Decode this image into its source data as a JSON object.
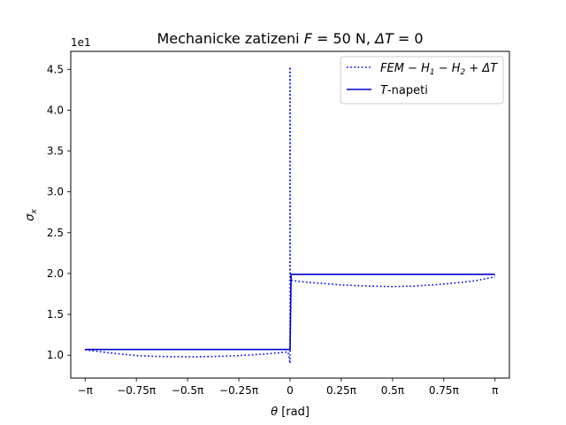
{
  "chart_data": {
    "type": "line",
    "title": "Mechanicke zatizeni F = 50 N, ΔT = 0",
    "title_parts": {
      "prefix": "Mechanicke zatizeni ",
      "var_f": "F",
      "mid": " = 50 N, ",
      "var_dt": "ΔT",
      "suffix": " = 0"
    },
    "xlabel": "θ [rad]",
    "xlabel_parts": {
      "var": "θ",
      "unit": " [rad]"
    },
    "ylabel": "σx",
    "ylabel_parts": {
      "sym": "σ",
      "sub": "x"
    },
    "y_offset_text": "1e1",
    "x_unit": "pi",
    "xlim": [
      -1.07,
      1.07
    ],
    "ylim": [
      0.72,
      4.72
    ],
    "x_ticks": [
      {
        "value": -1.0,
        "label": "−π"
      },
      {
        "value": -0.75,
        "label": "−0.75π"
      },
      {
        "value": -0.5,
        "label": "−0.5π"
      },
      {
        "value": -0.25,
        "label": "−0.25π"
      },
      {
        "value": 0.0,
        "label": "0"
      },
      {
        "value": 0.25,
        "label": "0.25π"
      },
      {
        "value": 0.5,
        "label": "0.5π"
      },
      {
        "value": 0.75,
        "label": "0.75π"
      },
      {
        "value": 1.0,
        "label": "π"
      }
    ],
    "y_ticks": [
      {
        "value": 1.0,
        "label": "1.0"
      },
      {
        "value": 1.5,
        "label": "1.5"
      },
      {
        "value": 2.0,
        "label": "2.0"
      },
      {
        "value": 2.5,
        "label": "2.5"
      },
      {
        "value": 3.0,
        "label": "3.0"
      },
      {
        "value": 3.5,
        "label": "3.5"
      },
      {
        "value": 4.0,
        "label": "4.0"
      },
      {
        "value": 4.5,
        "label": "4.5"
      }
    ],
    "grid": false,
    "legend_position": "top-right",
    "series": [
      {
        "name": "FEM − H1 − H2 + ΔT",
        "legend_parts": [
          "FEM − H",
          "1",
          " − H",
          "2",
          " + ΔT"
        ],
        "style": "dotted",
        "color": "#0000ff",
        "x": [
          -1.0,
          -0.85,
          -0.75,
          -0.65,
          -0.5,
          -0.35,
          -0.25,
          -0.15,
          -0.05,
          -0.01,
          0.0,
          0.0,
          0.0,
          0.005,
          0.02,
          0.1,
          0.25,
          0.4,
          0.5,
          0.6,
          0.75,
          0.9,
          1.0
        ],
        "y": [
          1.065,
          1.02,
          0.995,
          0.985,
          0.98,
          0.985,
          0.995,
          1.01,
          1.03,
          1.04,
          0.9,
          4.53,
          2.0,
          1.92,
          1.91,
          1.89,
          1.86,
          1.845,
          1.84,
          1.845,
          1.87,
          1.91,
          1.96
        ]
      },
      {
        "name": "T-napeti",
        "legend_parts": [
          "T",
          "-napeti"
        ],
        "style": "solid",
        "color": "#0000cd",
        "x": [
          -1.0,
          -0.5,
          0.0,
          0.005,
          0.5,
          1.0
        ],
        "y": [
          1.07,
          1.07,
          1.07,
          1.99,
          1.99,
          1.99
        ]
      }
    ]
  }
}
